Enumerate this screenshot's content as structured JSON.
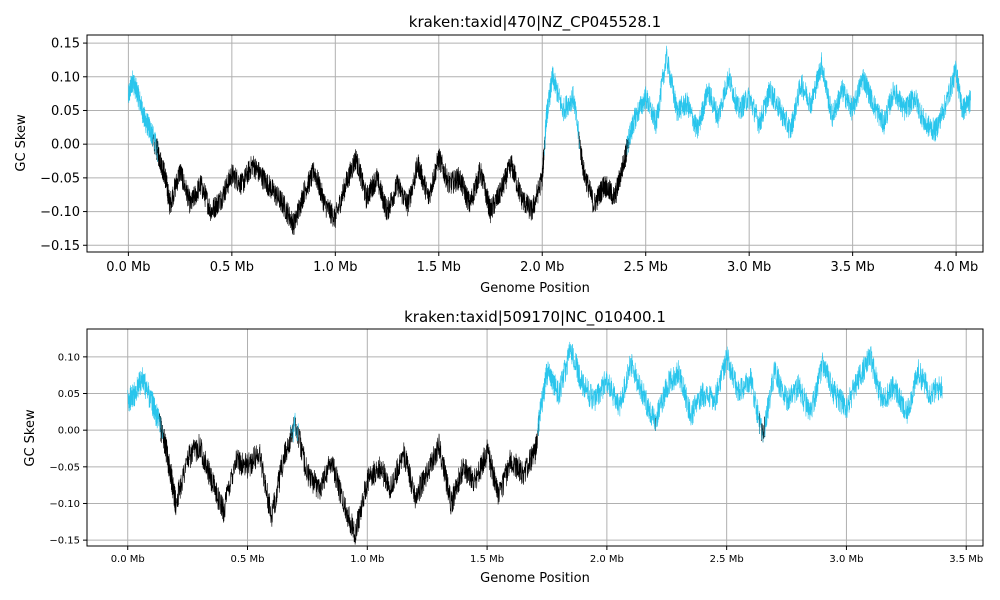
{
  "colors": {
    "positive": "#29c5ec",
    "negative": "#000000",
    "grid": "#b0b0b0"
  },
  "chart_data": [
    {
      "type": "line",
      "title": "kraken:taxid|470|NZ_CP045528.1",
      "xlabel": "Genome Position",
      "ylabel": "GC Skew",
      "x_unit": "Mb",
      "xlim": [
        -0.2,
        4.13
      ],
      "ylim": [
        -0.16,
        0.162
      ],
      "xticks": [
        0.0,
        0.5,
        1.0,
        1.5,
        2.0,
        2.5,
        3.0,
        3.5,
        4.0
      ],
      "xtick_labels": [
        "0.0 Mb",
        "0.5 Mb",
        "1.0 Mb",
        "1.5 Mb",
        "2.0 Mb",
        "2.5 Mb",
        "3.0 Mb",
        "3.5 Mb",
        "4.0 Mb"
      ],
      "yticks": [
        -0.15,
        -0.1,
        -0.05,
        0.0,
        0.05,
        0.1,
        0.15
      ],
      "ytick_labels": [
        "−0.15",
        "−0.10",
        "−0.05",
        "0.00",
        "0.05",
        "0.10",
        "0.15"
      ],
      "grid": true,
      "tick_font": "large",
      "series": [
        {
          "x": [
            0.0,
            0.02,
            0.05,
            0.08,
            0.1,
            0.12,
            0.15,
            0.18,
            0.2,
            0.25,
            0.3,
            0.35,
            0.4,
            0.45,
            0.5,
            0.55,
            0.6,
            0.65,
            0.7,
            0.75,
            0.8,
            0.85,
            0.9,
            0.95,
            1.0,
            1.05,
            1.1,
            1.15,
            1.2,
            1.25,
            1.3,
            1.35,
            1.4,
            1.45,
            1.5,
            1.55,
            1.6,
            1.65,
            1.7,
            1.75,
            1.8,
            1.85,
            1.9,
            1.95,
            2.0,
            2.02,
            2.05,
            2.1,
            2.15,
            2.2,
            2.25,
            2.3,
            2.35,
            2.4,
            2.42,
            2.45,
            2.5,
            2.55,
            2.6,
            2.65,
            2.7,
            2.75,
            2.8,
            2.85,
            2.9,
            2.95,
            3.0,
            3.05,
            3.1,
            3.15,
            3.2,
            3.25,
            3.3,
            3.35,
            3.4,
            3.45,
            3.5,
            3.55,
            3.6,
            3.65,
            3.7,
            3.75,
            3.8,
            3.85,
            3.9,
            3.95,
            4.0,
            4.03,
            4.07
          ],
          "y": [
            0.07,
            0.095,
            0.07,
            0.035,
            0.025,
            0.01,
            -0.02,
            -0.05,
            -0.09,
            -0.04,
            -0.09,
            -0.06,
            -0.1,
            -0.08,
            -0.045,
            -0.06,
            -0.03,
            -0.05,
            -0.07,
            -0.09,
            -0.12,
            -0.07,
            -0.04,
            -0.09,
            -0.11,
            -0.06,
            -0.02,
            -0.08,
            -0.05,
            -0.1,
            -0.06,
            -0.09,
            -0.03,
            -0.08,
            -0.02,
            -0.06,
            -0.05,
            -0.09,
            -0.04,
            -0.1,
            -0.07,
            -0.03,
            -0.08,
            -0.1,
            -0.05,
            0.04,
            0.1,
            0.05,
            0.07,
            -0.04,
            -0.09,
            -0.06,
            -0.08,
            -0.02,
            0.01,
            0.04,
            0.07,
            0.03,
            0.13,
            0.05,
            0.06,
            0.02,
            0.08,
            0.04,
            0.1,
            0.05,
            0.07,
            0.03,
            0.08,
            0.05,
            0.02,
            0.09,
            0.06,
            0.12,
            0.04,
            0.08,
            0.05,
            0.1,
            0.06,
            0.03,
            0.08,
            0.05,
            0.07,
            0.03,
            0.02,
            0.06,
            0.11,
            0.05,
            0.065
          ]
        }
      ]
    },
    {
      "type": "line",
      "title": "kraken:taxid|509170|NC_010400.1",
      "xlabel": "Genome Position",
      "ylabel": "GC Skew",
      "x_unit": "Mb",
      "xlim": [
        -0.17,
        3.57
      ],
      "ylim": [
        -0.158,
        0.138
      ],
      "xticks": [
        0.0,
        0.5,
        1.0,
        1.5,
        2.0,
        2.5,
        3.0,
        3.5
      ],
      "xtick_labels": [
        "0.0 Mb",
        "0.5 Mb",
        "1.0 Mb",
        "1.5 Mb",
        "2.0 Mb",
        "2.5 Mb",
        "3.0 Mb",
        "3.5 Mb"
      ],
      "yticks": [
        -0.15,
        -0.1,
        -0.05,
        0.0,
        0.05,
        0.1
      ],
      "ytick_labels": [
        "−0.15",
        "−0.10",
        "−0.05",
        "0.00",
        "0.05",
        "0.10"
      ],
      "grid": true,
      "tick_font": "small",
      "series": [
        {
          "x": [
            0.0,
            0.03,
            0.06,
            0.1,
            0.12,
            0.15,
            0.18,
            0.2,
            0.25,
            0.3,
            0.35,
            0.4,
            0.45,
            0.5,
            0.55,
            0.6,
            0.65,
            0.7,
            0.75,
            0.8,
            0.85,
            0.9,
            0.95,
            1.0,
            1.05,
            1.1,
            1.15,
            1.2,
            1.25,
            1.3,
            1.35,
            1.4,
            1.45,
            1.5,
            1.55,
            1.6,
            1.65,
            1.7,
            1.72,
            1.75,
            1.8,
            1.85,
            1.9,
            1.95,
            2.0,
            2.05,
            2.1,
            2.15,
            2.2,
            2.25,
            2.3,
            2.35,
            2.4,
            2.45,
            2.5,
            2.55,
            2.6,
            2.65,
            2.7,
            2.75,
            2.8,
            2.85,
            2.9,
            2.95,
            3.0,
            3.05,
            3.1,
            3.15,
            3.2,
            3.25,
            3.3,
            3.35,
            3.4
          ],
          "y": [
            0.04,
            0.05,
            0.07,
            0.04,
            0.02,
            -0.01,
            -0.06,
            -0.1,
            -0.04,
            -0.02,
            -0.07,
            -0.11,
            -0.04,
            -0.05,
            -0.03,
            -0.12,
            -0.04,
            0.01,
            -0.06,
            -0.08,
            -0.04,
            -0.1,
            -0.14,
            -0.07,
            -0.05,
            -0.08,
            -0.03,
            -0.09,
            -0.06,
            -0.02,
            -0.1,
            -0.05,
            -0.07,
            -0.03,
            -0.09,
            -0.04,
            -0.06,
            -0.03,
            0.02,
            0.08,
            0.05,
            0.11,
            0.06,
            0.04,
            0.07,
            0.03,
            0.09,
            0.05,
            0.01,
            0.06,
            0.08,
            0.02,
            0.05,
            0.04,
            0.1,
            0.05,
            0.07,
            -0.01,
            0.08,
            0.04,
            0.06,
            0.02,
            0.09,
            0.05,
            0.03,
            0.07,
            0.1,
            0.04,
            0.06,
            0.02,
            0.08,
            0.05,
            0.06
          ]
        }
      ]
    }
  ]
}
